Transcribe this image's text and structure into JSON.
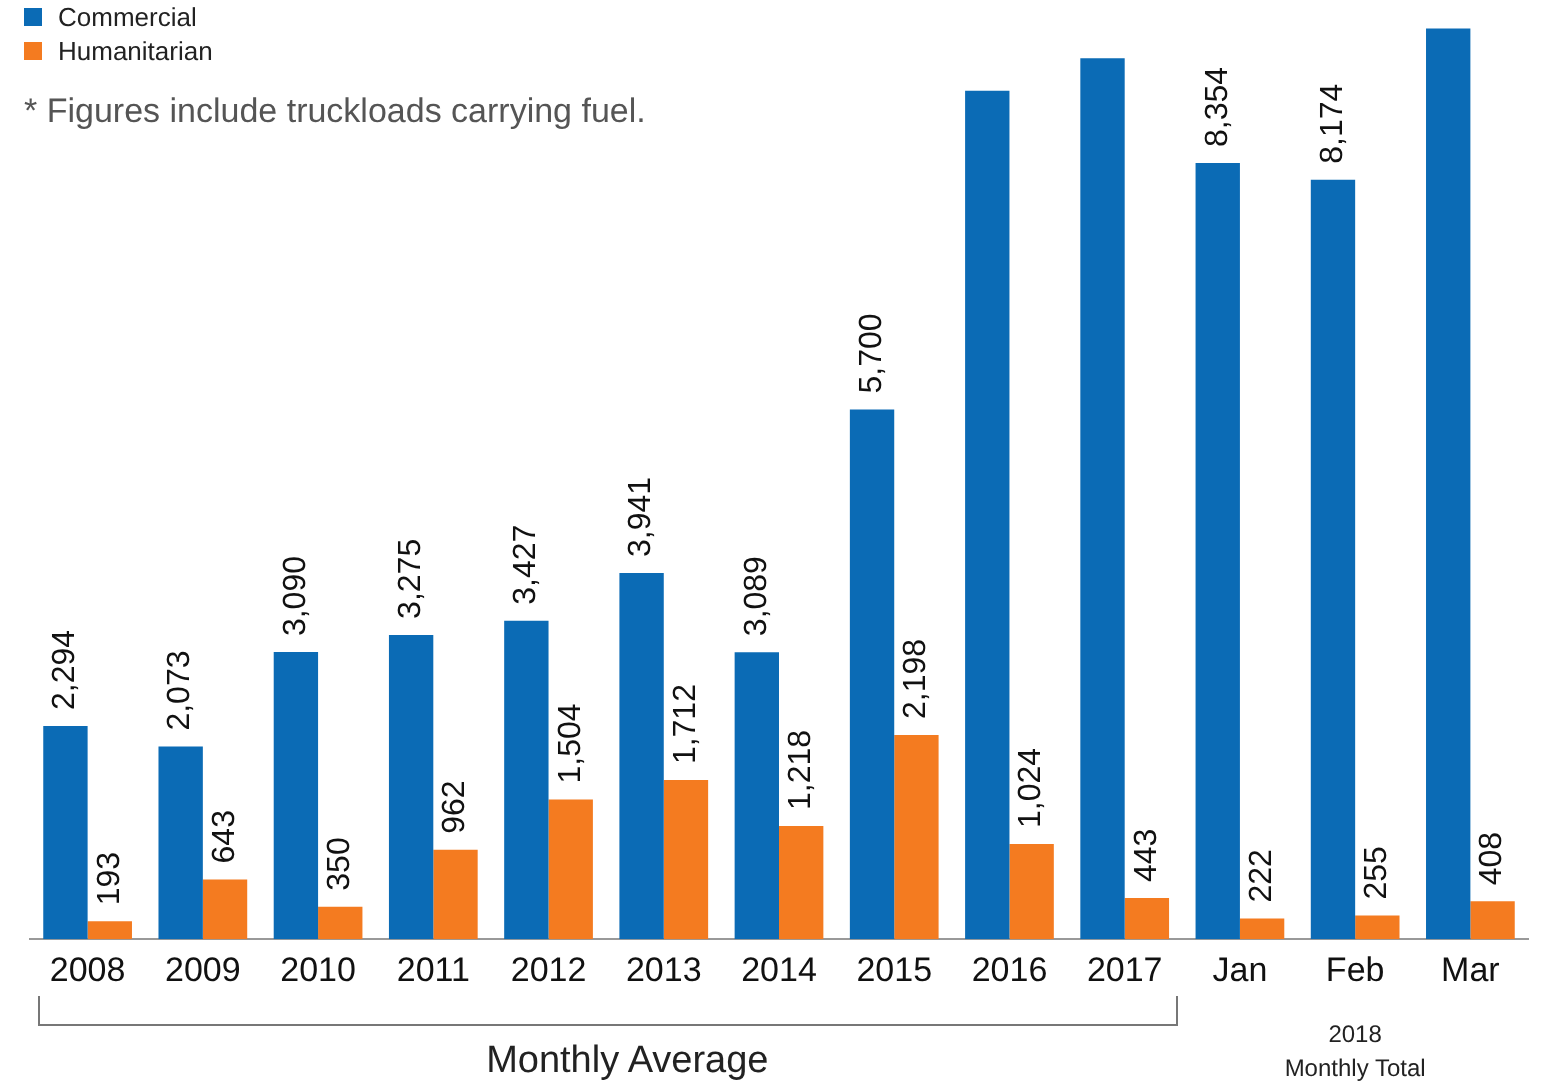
{
  "chart_data": {
    "type": "bar",
    "categories": [
      "2008",
      "2009",
      "2010",
      "2011",
      "2012",
      "2013",
      "2014",
      "2015",
      "2016",
      "2017",
      "Jan",
      "Feb",
      "Mar"
    ],
    "series": [
      {
        "name": "Commercial",
        "color": "#0b6bb5",
        "values": [
          2294,
          2073,
          3090,
          3275,
          3427,
          3941,
          3089,
          5700,
          9130,
          9480,
          8354,
          8174,
          9800
        ],
        "value_labels": [
          "2,294",
          "2,073",
          "3,090",
          "3,275",
          "3,427",
          "3,941",
          "3,089",
          "5,700",
          null,
          null,
          "8,354",
          "8,174",
          null
        ]
      },
      {
        "name": "Humanitarian",
        "color": "#f47b20",
        "values": [
          193,
          643,
          350,
          962,
          1504,
          1712,
          1218,
          2198,
          1024,
          443,
          222,
          255,
          408
        ],
        "value_labels": [
          "193",
          "643",
          "350",
          "962",
          "1,504",
          "1,712",
          "1,218",
          "2,198",
          "1,024",
          "443",
          "222",
          "255",
          "408"
        ]
      }
    ],
    "ylim": [
      0,
      10000
    ],
    "tick_labels": "x",
    "grid": false,
    "legend": "top left",
    "annotations": [
      "*   Figures include truckloads carrying fuel.",
      "Monthly Average",
      "2018",
      "Monthly Total"
    ]
  }
}
